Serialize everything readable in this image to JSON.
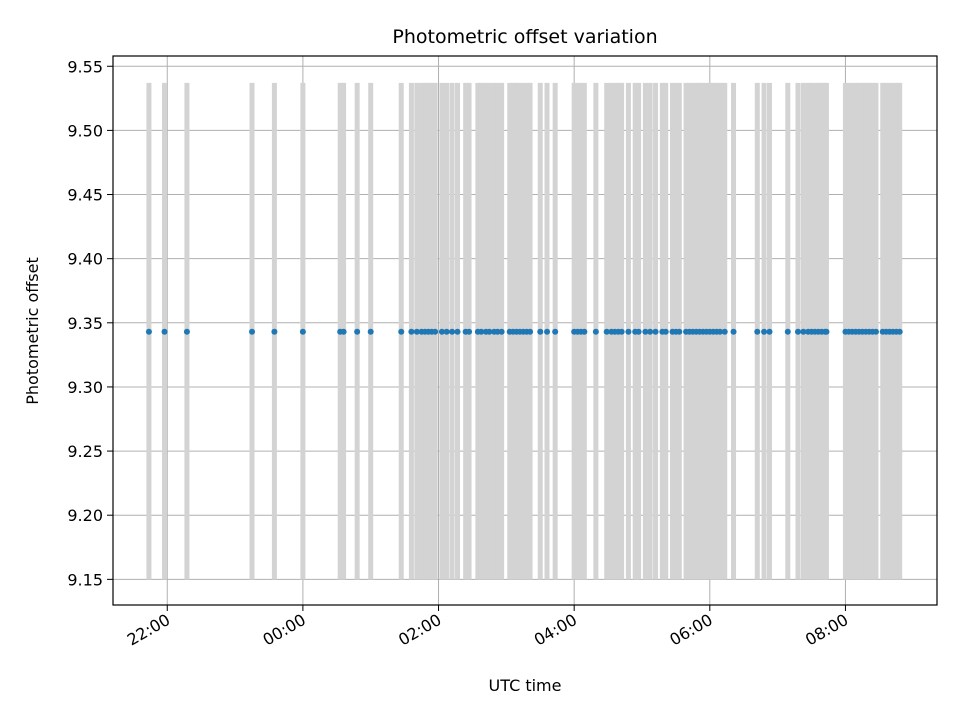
{
  "chart_data": {
    "type": "scatter",
    "title": "Photometric offset variation",
    "xlabel": "UTC time",
    "ylabel": "Photometric offset",
    "x_tick_labels": [
      "22:00",
      "00:00",
      "02:00",
      "04:00",
      "06:00",
      "08:00"
    ],
    "x_tick_hours": [
      22,
      24,
      26,
      28,
      30,
      32
    ],
    "y_ticks": [
      9.15,
      9.2,
      9.25,
      9.3,
      9.35,
      9.4,
      9.45,
      9.5,
      9.55
    ],
    "y_tick_labels": [
      "9.15",
      "9.20",
      "9.25",
      "9.30",
      "9.35",
      "9.40",
      "9.45",
      "9.50",
      "9.55"
    ],
    "xlim_hours": [
      21.2,
      33.35
    ],
    "ylim": [
      9.13,
      9.558
    ],
    "grid": true,
    "point_color": "#1f77b4",
    "errorbar_color": "#d3d3d3",
    "series": [
      {
        "y_value": 9.343,
        "error_low": 9.15,
        "error_high": 9.537,
        "x_hours": [
          21.73,
          21.96,
          22.29,
          23.25,
          23.58,
          24.0,
          24.55,
          24.6,
          24.8,
          25.0,
          25.45,
          25.6,
          25.68,
          25.75,
          25.8,
          25.85,
          25.9,
          25.95,
          26.05,
          26.12,
          26.2,
          26.28,
          26.4,
          26.45,
          26.58,
          26.63,
          26.7,
          26.75,
          26.82,
          26.87,
          26.93,
          27.05,
          27.1,
          27.15,
          27.2,
          27.25,
          27.3,
          27.35,
          27.5,
          27.6,
          27.72,
          28.0,
          28.05,
          28.1,
          28.15,
          28.32,
          28.48,
          28.55,
          28.6,
          28.65,
          28.7,
          28.8,
          28.9,
          28.95,
          29.05,
          29.12,
          29.2,
          29.3,
          29.35,
          29.45,
          29.5,
          29.55,
          29.65,
          29.7,
          29.75,
          29.8,
          29.85,
          29.9,
          29.95,
          30.0,
          30.05,
          30.1,
          30.15,
          30.22,
          30.35,
          30.7,
          30.8,
          30.88,
          31.15,
          31.3,
          31.38,
          31.45,
          31.5,
          31.55,
          31.6,
          31.65,
          31.7,
          31.72,
          32.0,
          32.05,
          32.1,
          32.15,
          32.2,
          32.25,
          32.3,
          32.35,
          32.4,
          32.45,
          32.55,
          32.6,
          32.65,
          32.7,
          32.75,
          32.8
        ]
      }
    ]
  }
}
